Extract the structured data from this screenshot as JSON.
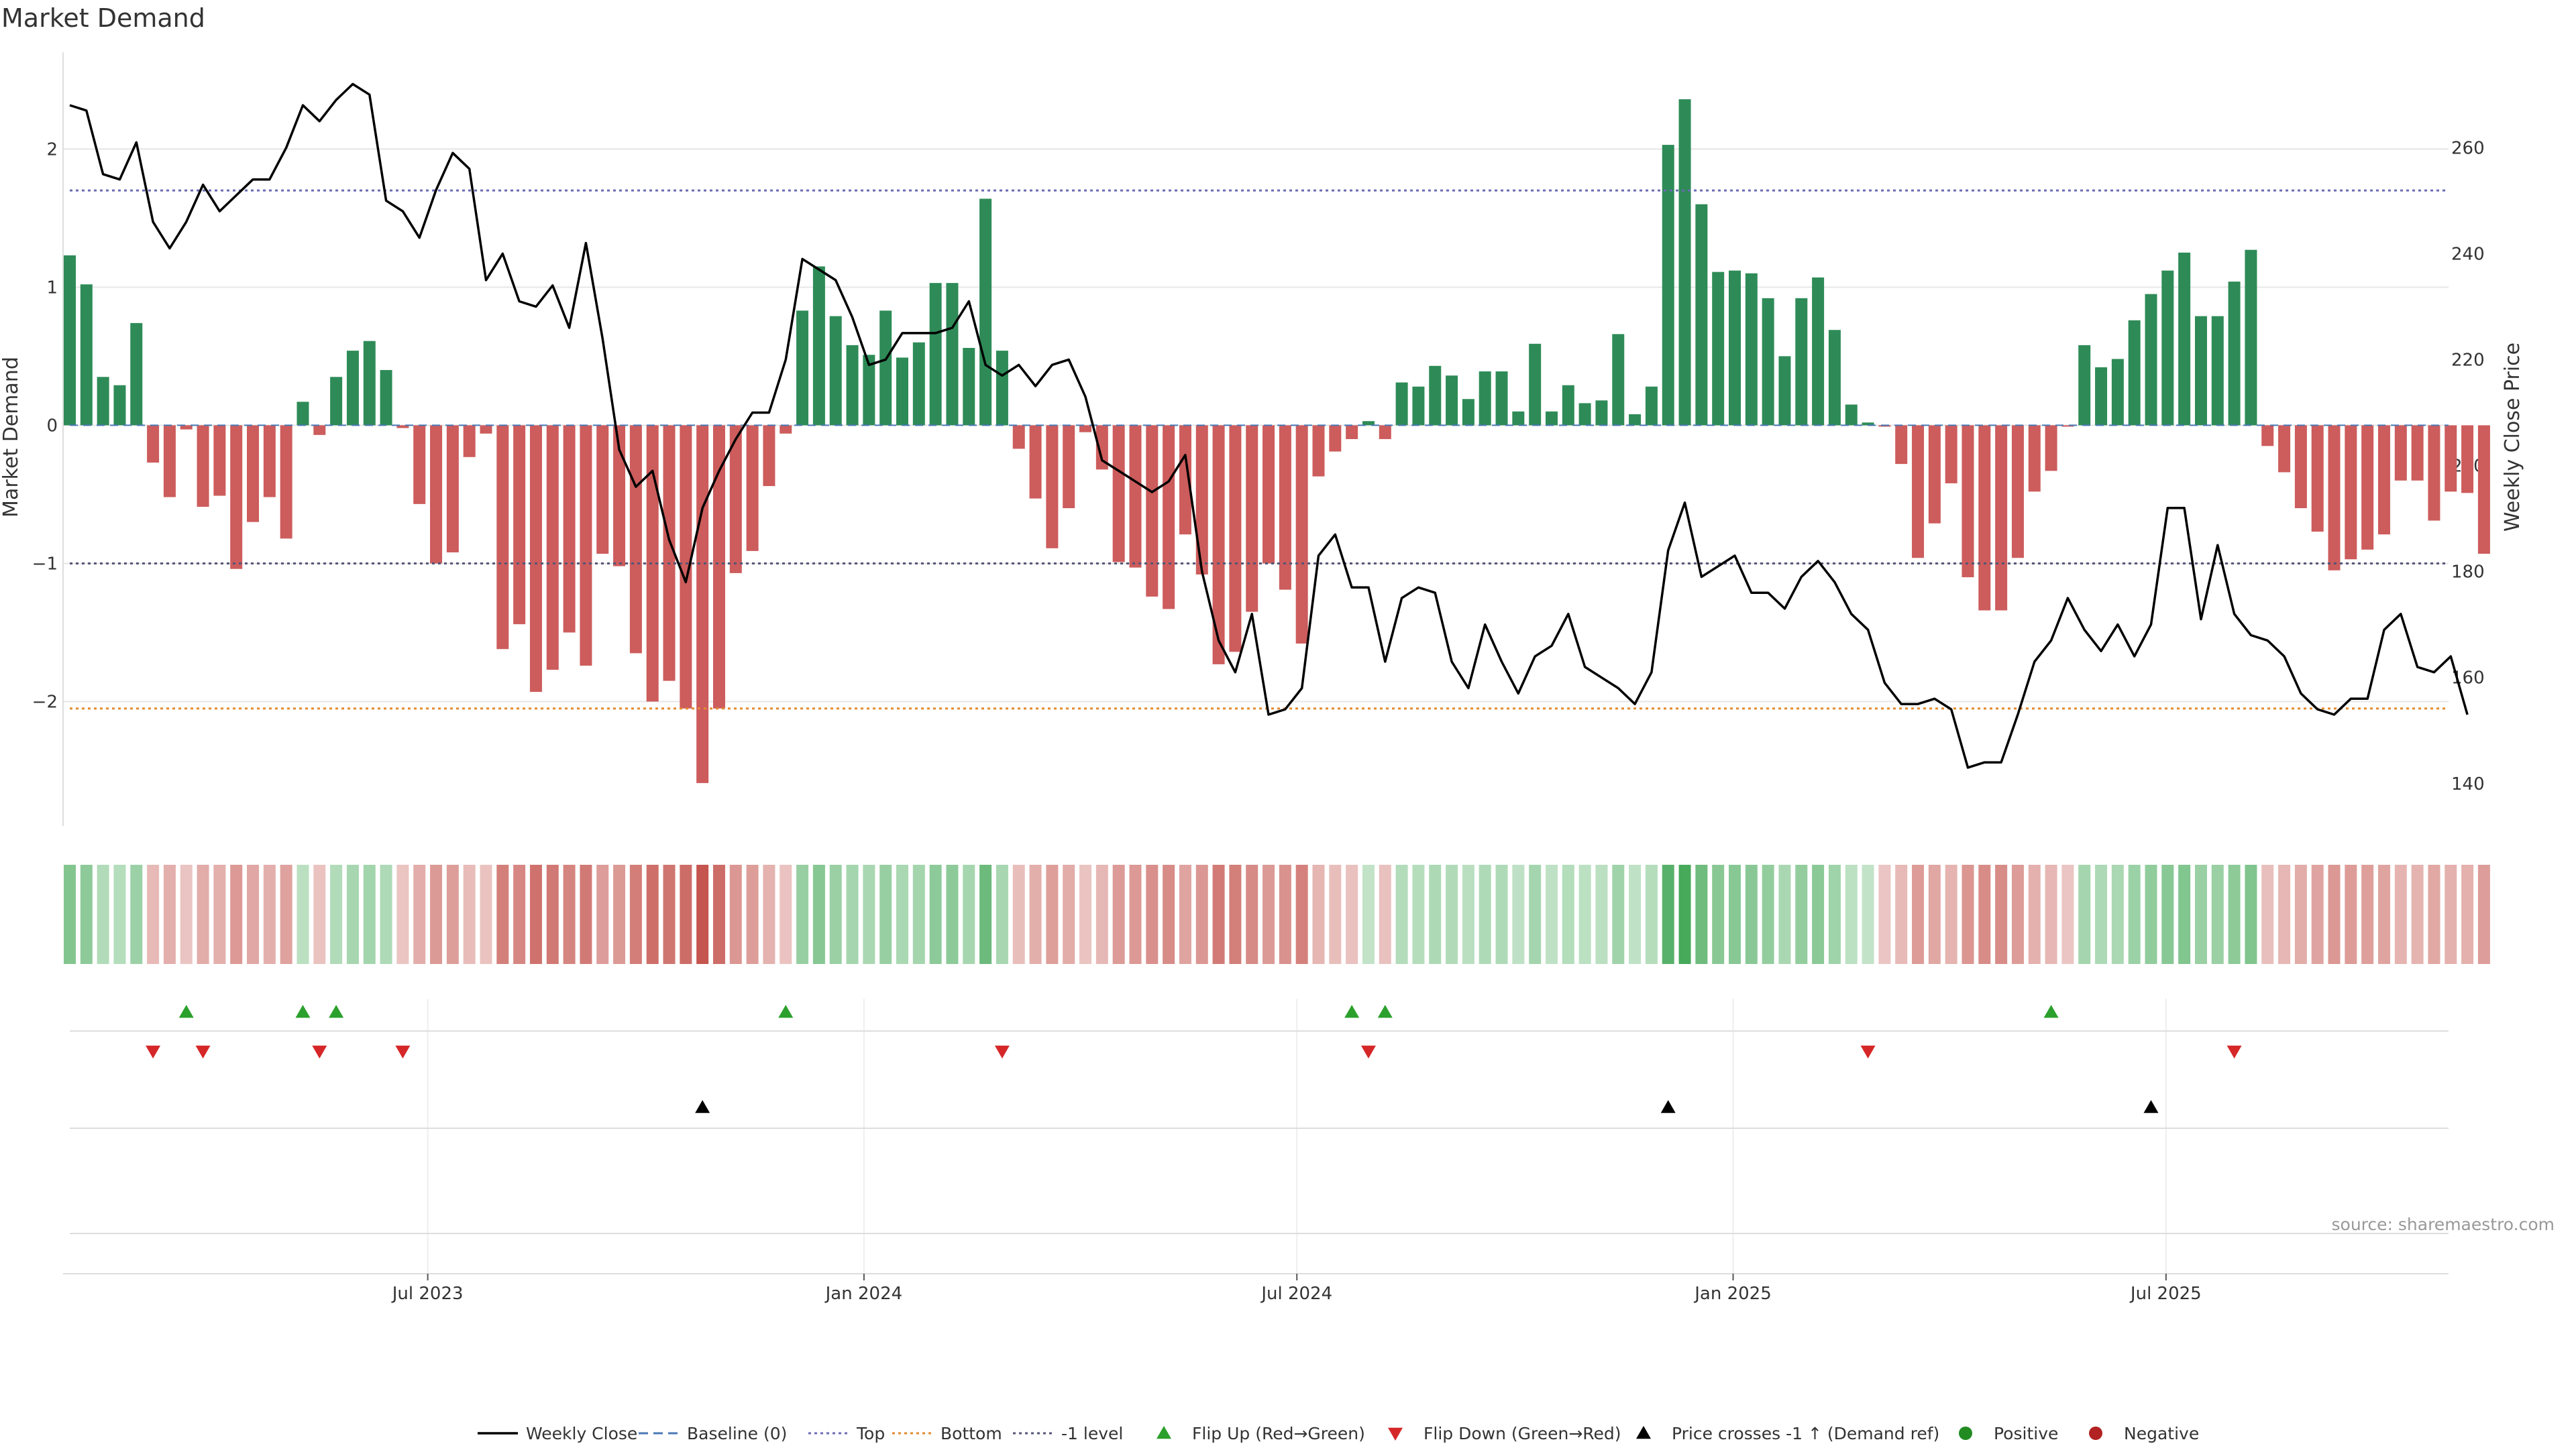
{
  "chart_data": {
    "type": "bar",
    "title": "Market Demand",
    "ylabel_left": "Market Demand",
    "ylabel_right": "Weekly Close Price",
    "ylim_left": [
      -2.9,
      2.7
    ],
    "ylim_right": [
      132,
      278
    ],
    "left_ticks": [
      2,
      1,
      0,
      -1,
      -2
    ],
    "left_tick_labels": [
      "2",
      "1",
      "0",
      "−1",
      "−2"
    ],
    "right_ticks": [
      260,
      240,
      220,
      200,
      180,
      160,
      140
    ],
    "right_tick_labels": [
      "260",
      "240",
      "220",
      "200",
      "180",
      "160",
      "140"
    ],
    "x_tick_labels": [
      "Jul 2023",
      "Jan 2024",
      "Jul 2024",
      "Jan 2025",
      "Jul 2025"
    ],
    "x_tick_index": [
      21.5,
      47.7,
      73.7,
      99.9,
      125.9
    ],
    "reference_lines": [
      {
        "name": "Top",
        "value": 1.7,
        "color": "#6b6bb5",
        "dash": "4,5"
      },
      {
        "name": "Bottom",
        "value": -2.05,
        "color": "#e38a2e",
        "dash": "4,5"
      },
      {
        "name": "-1 level",
        "value": -1.0,
        "color": "#555577",
        "dash": "4,5"
      },
      {
        "name": "Baseline (0)",
        "value": 0,
        "color": "#4a78b5",
        "dash": "12,8"
      }
    ],
    "demand": [
      1.23,
      1.02,
      0.35,
      0.29,
      0.74,
      -0.27,
      -0.52,
      -0.03,
      -0.59,
      -0.51,
      -1.04,
      -0.7,
      -0.52,
      -0.82,
      0.17,
      -0.07,
      0.35,
      0.54,
      0.61,
      0.4,
      -0.02,
      -0.57,
      -1.0,
      -0.92,
      -0.23,
      -0.06,
      -1.62,
      -1.44,
      -1.93,
      -1.77,
      -1.5,
      -1.74,
      -0.93,
      -1.02,
      -1.65,
      -2.0,
      -1.85,
      -2.05,
      -2.59,
      -2.05,
      -1.07,
      -0.91,
      -0.44,
      -0.06,
      0.83,
      1.15,
      0.79,
      0.58,
      0.51,
      0.83,
      0.49,
      0.6,
      1.03,
      1.03,
      0.56,
      1.64,
      0.54,
      -0.17,
      -0.53,
      -0.89,
      -0.6,
      -0.05,
      -0.32,
      -0.99,
      -1.03,
      -1.24,
      -1.33,
      -0.79,
      -1.08,
      -1.73,
      -1.64,
      -1.35,
      -1.0,
      -1.19,
      -1.58,
      -0.37,
      -0.19,
      -0.1,
      0.03,
      -0.1,
      0.31,
      0.28,
      0.43,
      0.36,
      0.19,
      0.39,
      0.39,
      0.1,
      0.59,
      0.1,
      0.29,
      0.16,
      0.18,
      0.66,
      0.08,
      0.28,
      2.03,
      2.36,
      1.6,
      1.11,
      1.12,
      1.1,
      0.92,
      0.5,
      0.92,
      1.07,
      0.69,
      0.15,
      0.02,
      -0.01,
      -0.28,
      -0.96,
      -0.71,
      -0.42,
      -1.1,
      -1.34,
      -1.34,
      -0.96,
      -0.48,
      -0.33,
      -0.01,
      0.58,
      0.42,
      0.48,
      0.76,
      0.95,
      1.12,
      1.25,
      0.79,
      0.79,
      1.04,
      1.27,
      -0.15,
      -0.34,
      -0.6,
      -0.77,
      -1.05,
      -0.97,
      -0.9,
      -0.79,
      -0.4,
      -0.4,
      -0.69,
      -0.48,
      -0.49,
      -0.93
    ],
    "weekly_close": [
      268,
      267,
      255,
      254,
      261,
      246,
      241,
      246,
      253,
      248,
      251,
      254,
      254,
      260,
      268,
      265,
      269,
      272,
      270,
      250,
      248,
      243,
      252,
      259,
      256,
      235,
      240,
      231,
      230,
      234,
      226,
      242,
      224,
      203,
      196,
      199,
      186,
      178,
      192,
      199,
      205,
      210,
      210,
      220,
      239,
      237,
      235,
      228,
      219,
      220,
      225,
      225,
      225,
      226,
      231,
      219,
      217,
      219,
      215,
      219,
      220,
      213,
      201,
      199,
      197,
      195,
      197,
      202,
      180,
      167,
      161,
      172,
      153,
      154,
      158,
      183,
      187,
      177,
      177,
      163,
      175,
      177,
      176,
      163,
      158,
      170,
      163,
      157,
      164,
      166,
      172,
      162,
      160,
      158,
      155,
      161,
      184,
      193,
      179,
      181,
      183,
      176,
      176,
      173,
      179,
      182,
      178,
      172,
      169,
      159,
      155,
      155,
      156,
      154,
      143,
      144,
      144,
      153,
      163,
      167,
      175,
      169,
      165,
      170,
      164,
      170,
      192,
      192,
      171,
      185,
      172,
      168,
      167,
      164,
      157,
      154,
      153,
      156,
      156,
      169,
      172,
      162,
      161,
      164,
      153
    ],
    "strip_intensity_label": "Demand heat strip",
    "flip_up_index": [
      7,
      14,
      16,
      43,
      77,
      79,
      119
    ],
    "flip_down_index": [
      5,
      8,
      15,
      20,
      56,
      78,
      108,
      130
    ],
    "price_cross_index": [
      38,
      96,
      125
    ],
    "colors": {
      "positive_bar": "#2e8b57",
      "negative_bar": "#cd5c5c",
      "price_line": "#000000",
      "flip_up": "#2ca02c",
      "flip_down": "#d62728",
      "cross": "#000000",
      "positive_dot": "#228b22",
      "negative_dot": "#b22222",
      "grid": "#e6e6e6"
    },
    "legend": [
      {
        "key": "line-black",
        "label": "Weekly Close"
      },
      {
        "key": "dash-blue",
        "label": "Baseline (0)"
      },
      {
        "key": "dot-purple",
        "label": "Top"
      },
      {
        "key": "dot-orange",
        "label": "Bottom"
      },
      {
        "key": "dot-dark",
        "label": "-1 level"
      },
      {
        "key": "tri-up-green",
        "label": "Flip Up (Red→Green)"
      },
      {
        "key": "tri-down-red",
        "label": "Flip Down (Green→Red)"
      },
      {
        "key": "tri-up-black",
        "label": "Price crosses -1 ↑ (Demand ref)"
      },
      {
        "key": "dot-green",
        "label": "Positive"
      },
      {
        "key": "dot-red",
        "label": "Negative"
      }
    ],
    "source": "source: sharemaestro.com"
  }
}
